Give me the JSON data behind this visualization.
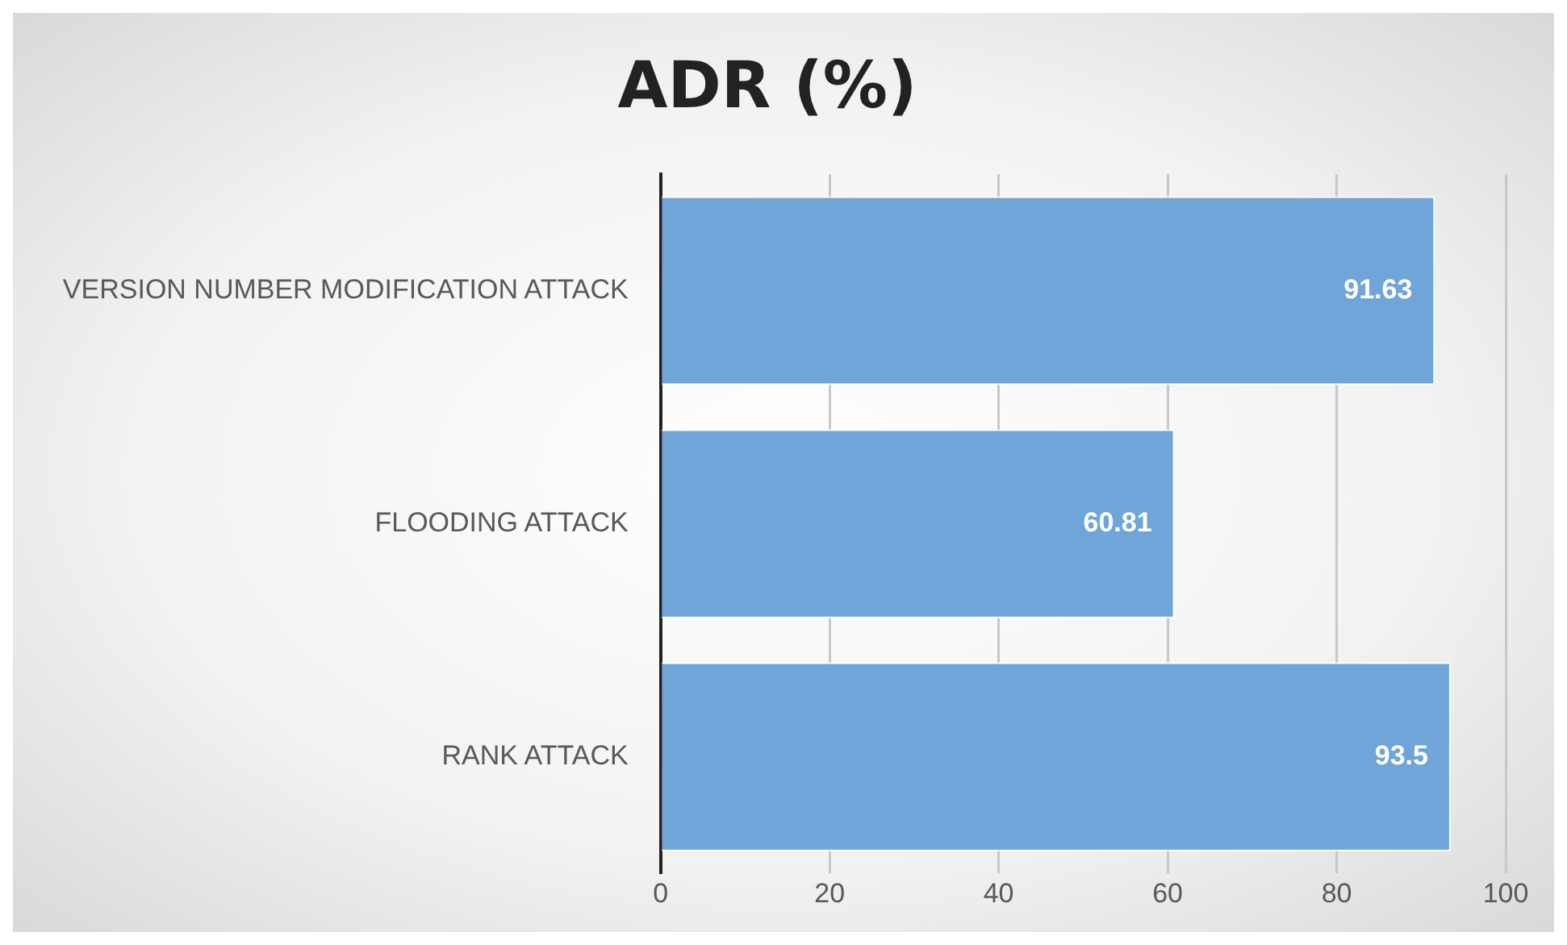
{
  "chart_data": {
    "type": "bar",
    "orientation": "horizontal",
    "title": "ADR (%)",
    "categories": [
      "VERSION NUMBER MODIFICATION ATTACK",
      "FLOODING ATTACK",
      "RANK ATTACK"
    ],
    "values": [
      91.63,
      60.81,
      93.5
    ],
    "color": "#6fa5d8",
    "xlim": [
      0,
      100
    ],
    "xticks": [
      0,
      20,
      40,
      60,
      80,
      100
    ],
    "grid": "x",
    "data_labels": true
  }
}
